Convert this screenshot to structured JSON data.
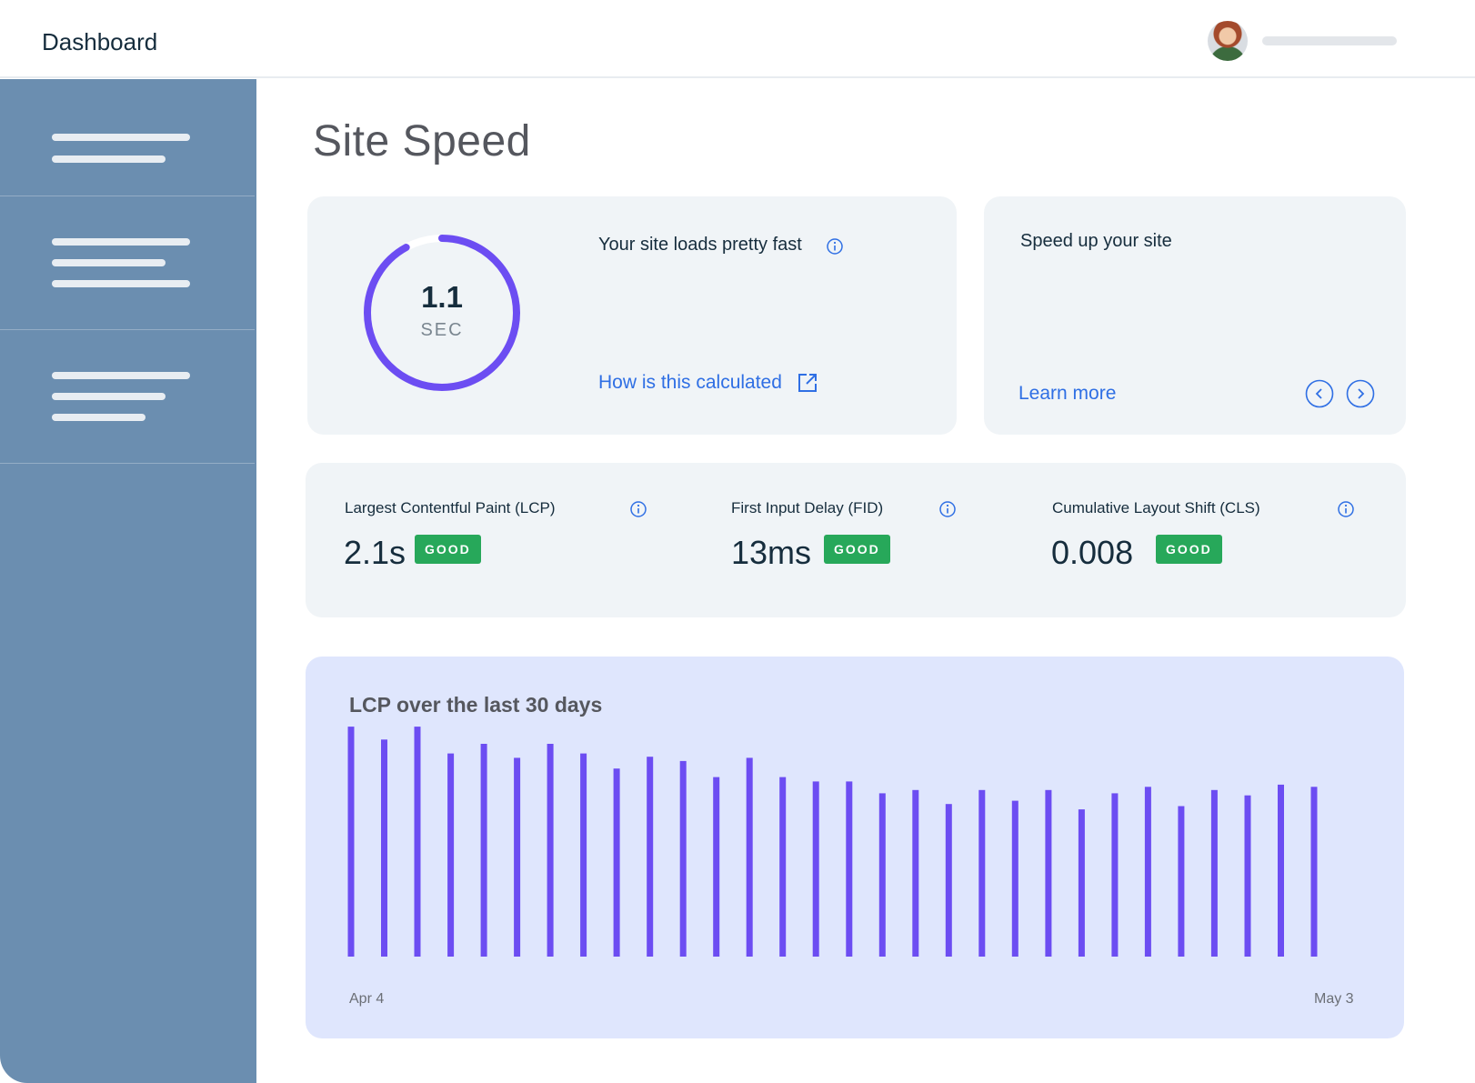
{
  "header": {
    "app_title": "Dashboard"
  },
  "main": {
    "title": "Site Speed"
  },
  "score_card": {
    "value": "1.1",
    "unit": "SEC",
    "gauge_fraction": 0.92,
    "headline": "Your site loads pretty fast",
    "link_label": "How is this calculated"
  },
  "tips_card": {
    "headline": "Speed up your site",
    "link_label": "Learn more"
  },
  "vitals": [
    {
      "name": "Largest Contentful Paint (LCP)",
      "value": "2.1s",
      "badge": "GOOD"
    },
    {
      "name": "First Input Delay (FID)",
      "value": "13ms",
      "badge": "GOOD"
    },
    {
      "name": "Cumulative Layout Shift (CLS)",
      "value": "0.008",
      "badge": "GOOD"
    }
  ],
  "colors": {
    "accent": "#6c4df2",
    "link": "#2f6fe4",
    "good": "#27a85a",
    "sidebar": "#6b8eb0"
  },
  "icons": [
    "info-icon",
    "external-link-icon",
    "chevron-left-icon",
    "chevron-right-icon"
  ],
  "chart_data": {
    "type": "bar",
    "title": "LCP over the last 30 days",
    "x_start_label": "Apr 4",
    "x_end_label": "May 3",
    "values": [
      2.14,
      2.02,
      2.14,
      1.89,
      1.98,
      1.85,
      1.98,
      1.89,
      1.75,
      1.86,
      1.82,
      1.67,
      1.85,
      1.67,
      1.63,
      1.63,
      1.52,
      1.55,
      1.42,
      1.55,
      1.45,
      1.55,
      1.37,
      1.52,
      1.58,
      1.4,
      1.55,
      1.5,
      1.6,
      1.58
    ],
    "ylim": [
      0,
      2.2
    ],
    "grid": false,
    "legend": "none"
  }
}
